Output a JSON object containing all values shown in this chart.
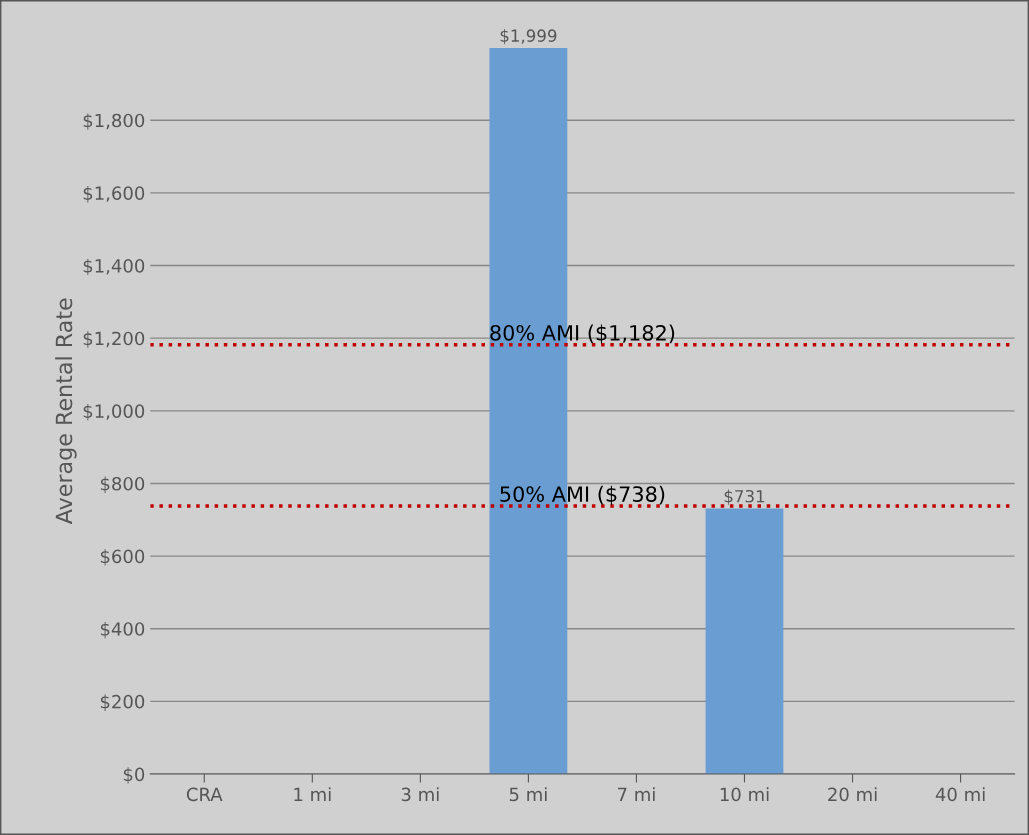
{
  "chart_data": {
    "type": "bar",
    "ylabel": "Average Rental Rate",
    "categories": [
      "CRA",
      "1 mi",
      "3 mi",
      "5 mi",
      "7 mi",
      "10 mi",
      "20 mi",
      "40 mi"
    ],
    "values": [
      null,
      null,
      null,
      1999,
      null,
      731,
      null,
      null
    ],
    "value_labels": [
      null,
      null,
      null,
      "$1,999",
      null,
      "$731",
      null,
      null
    ],
    "color": "#6a9dd1",
    "ylim": [
      0,
      2000
    ],
    "yticks": [
      {
        "value": 0,
        "label": "$0"
      },
      {
        "value": 200,
        "label": "$200"
      },
      {
        "value": 400,
        "label": "$400"
      },
      {
        "value": 600,
        "label": "$600"
      },
      {
        "value": 800,
        "label": "$800"
      },
      {
        "value": 1000,
        "label": "$1,000"
      },
      {
        "value": 1200,
        "label": "$1,200"
      },
      {
        "value": 1400,
        "label": "$1,400"
      },
      {
        "value": 1600,
        "label": "$1,600"
      },
      {
        "value": 1800,
        "label": "$1,800"
      }
    ],
    "ref_lines": [
      {
        "axis": "y",
        "value": 1182,
        "label": "80% AMI ($1,182)",
        "color": "#c00000",
        "line_style": "dotted"
      },
      {
        "axis": "y",
        "value": 738,
        "label": "50% AMI ($738)",
        "color": "#c00000",
        "line_style": "dotted"
      }
    ],
    "grid": "y",
    "legend": false
  }
}
